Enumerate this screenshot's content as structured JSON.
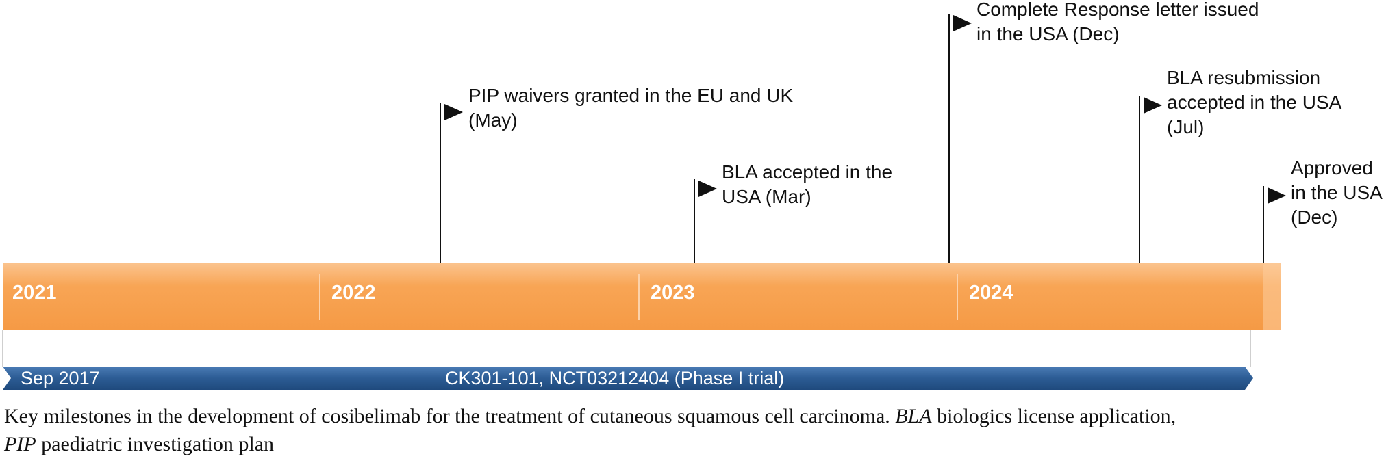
{
  "timeline": {
    "years": [
      "2021",
      "2022",
      "2023",
      "2024"
    ]
  },
  "milestones": [
    {
      "id": "pip",
      "lines": [
        "PIP waivers granted in the EU and UK",
        "(May)"
      ]
    },
    {
      "id": "bla-accepted",
      "lines": [
        "BLA accepted in the",
        "USA (Mar)"
      ]
    },
    {
      "id": "crl",
      "lines": [
        "Complete Response letter issued",
        "in the USA (Dec)"
      ]
    },
    {
      "id": "resubmission",
      "lines": [
        "BLA resubmission",
        "accepted in the USA",
        "(Jul)"
      ]
    },
    {
      "id": "approved",
      "lines": [
        "Approved",
        "in the USA",
        "(Dec)"
      ]
    }
  ],
  "trial_bar": {
    "start_label": "Sep 2017",
    "trial_label": "CK301-101, NCT03212404 (Phase I trial)"
  },
  "caption": {
    "part1": "Key milestones in the development of cosibelimab for the treatment of cutaneous squamous cell carcinoma. ",
    "abbr1": "BLA",
    "def1": " biologics license application,",
    "abbr2": "PIP",
    "def2": " paediatric investigation plan"
  },
  "colors": {
    "orange_light": "#FBBE84",
    "orange": "#F7A04D",
    "blue": "#2C5C94",
    "flag": "#111111"
  }
}
